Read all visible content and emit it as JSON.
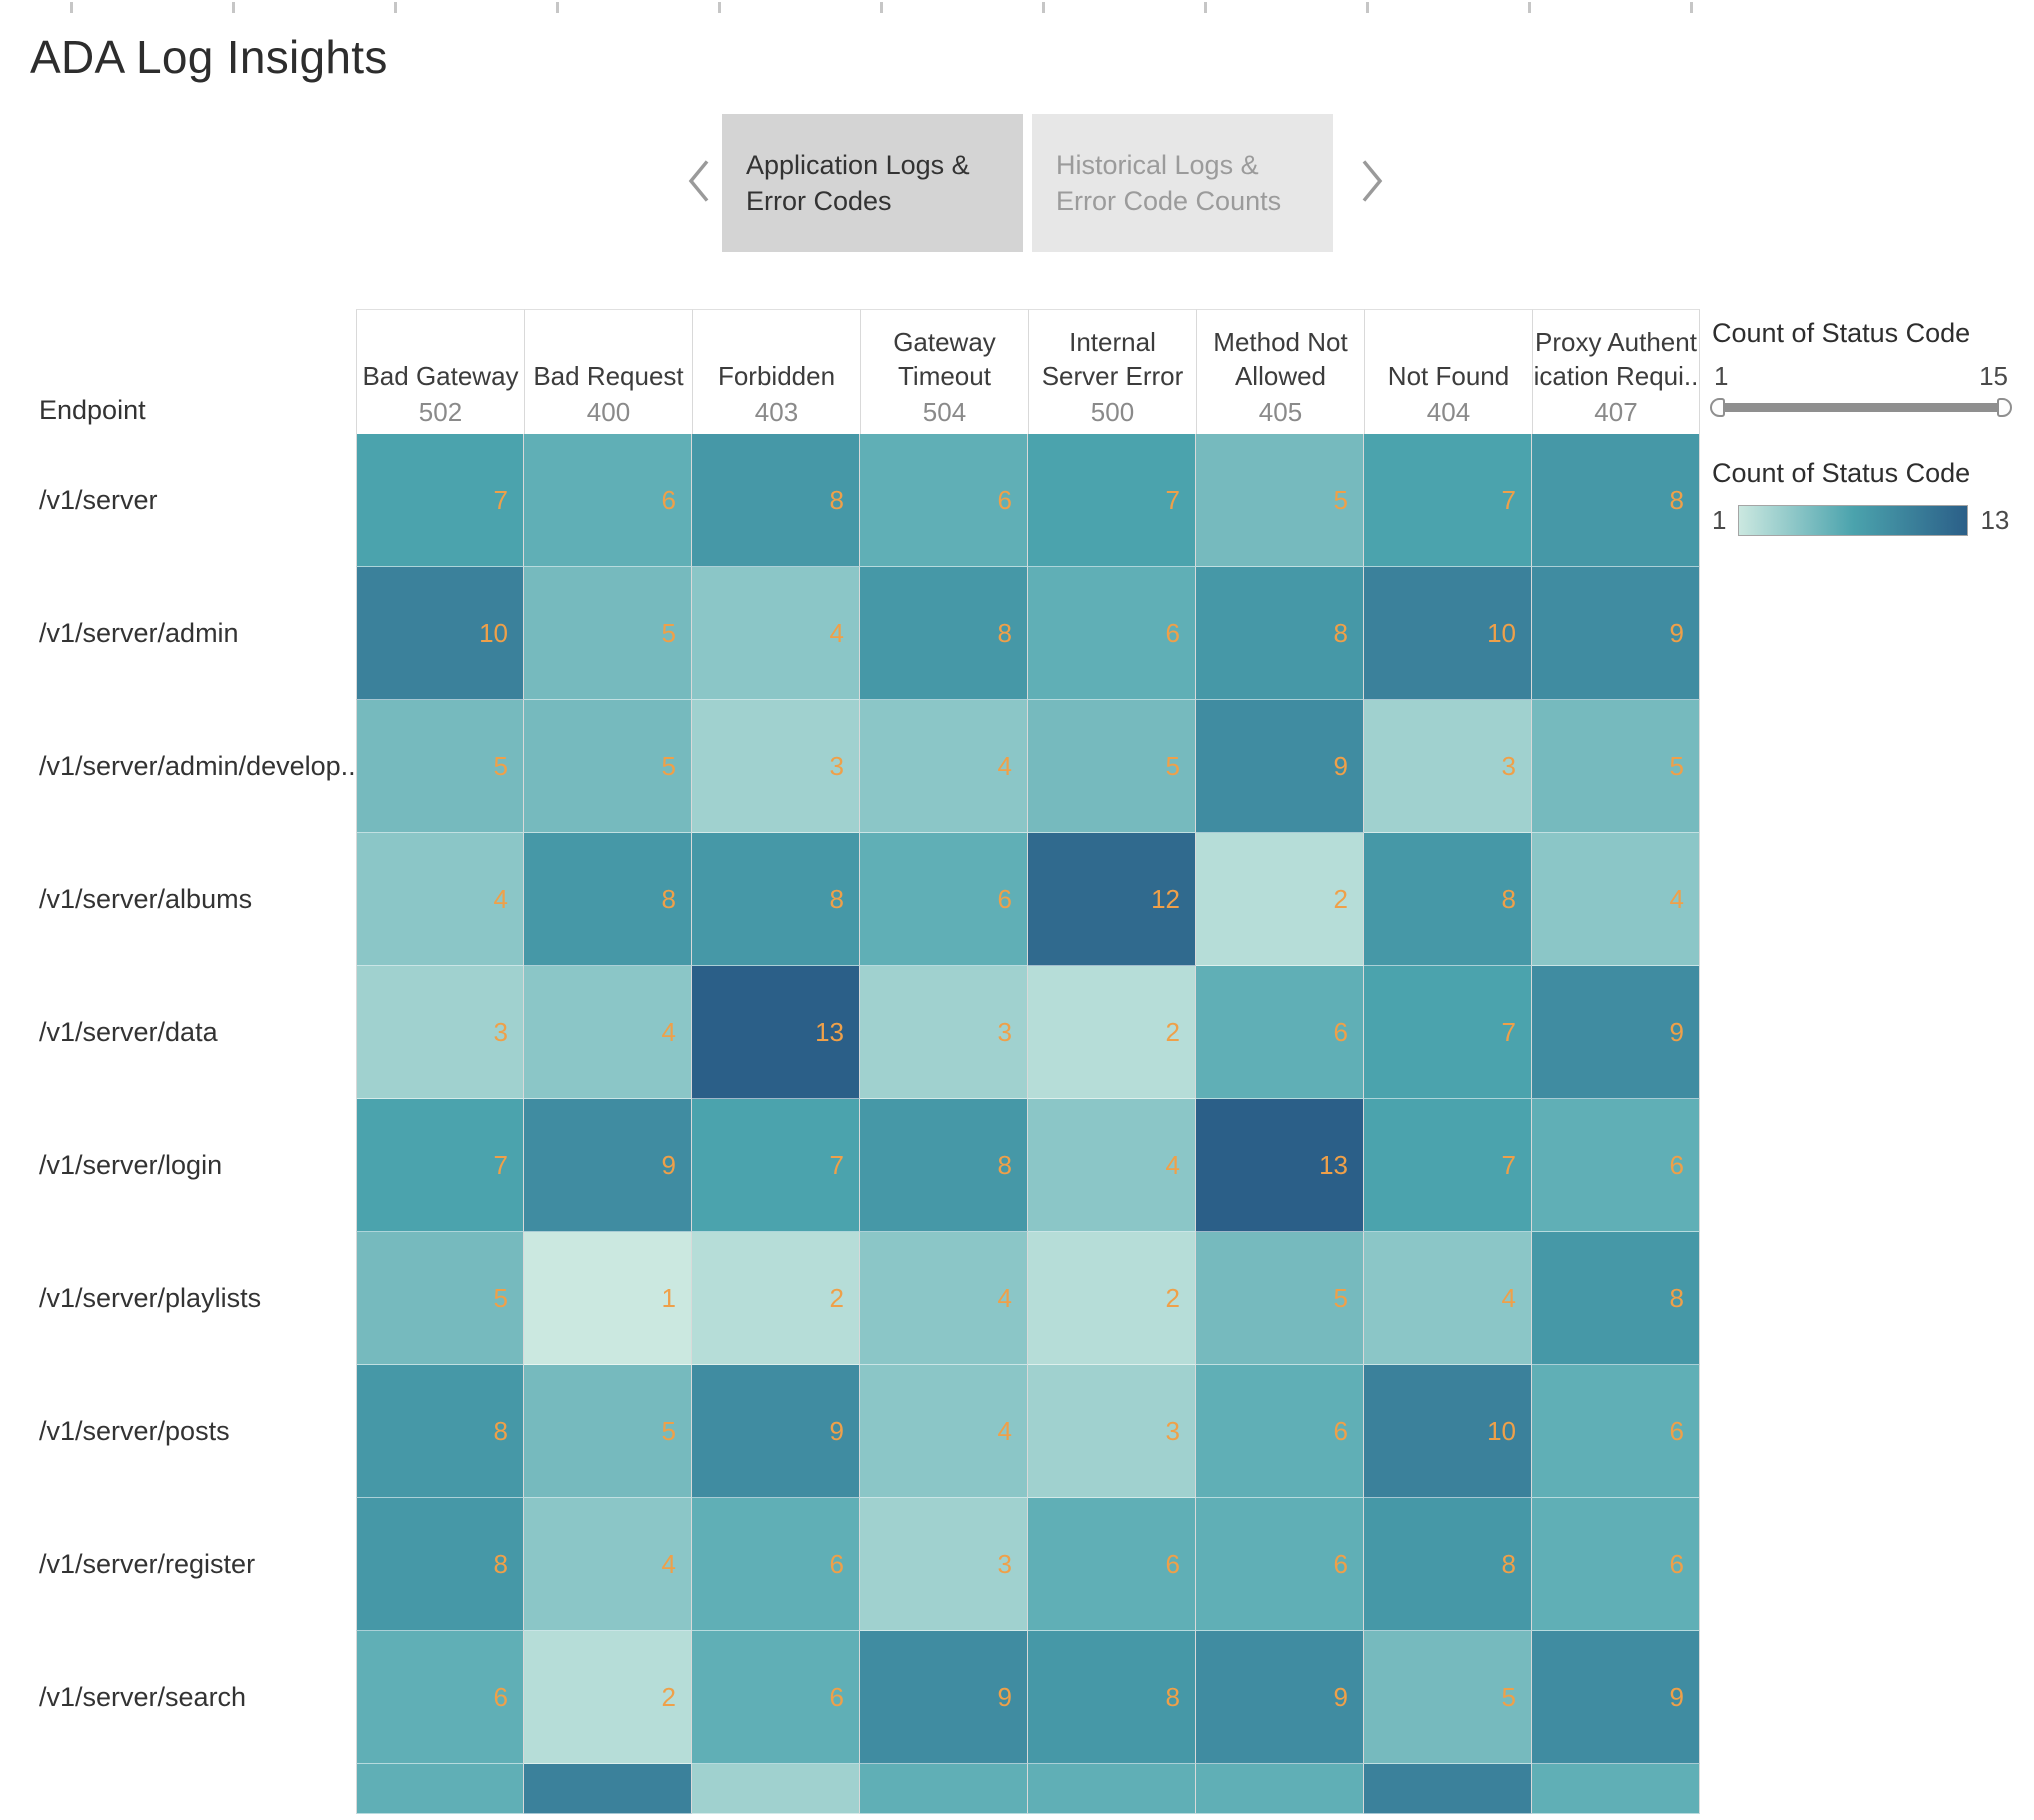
{
  "page": {
    "title": "ADA Log Insights"
  },
  "nav": {
    "tabs": [
      {
        "label": "Application Logs &\nError Codes",
        "active": true
      },
      {
        "label": "Historical Logs &\nError Code Counts",
        "active": false
      }
    ],
    "prev_icon": "chevron-left",
    "next_icon": "chevron-right"
  },
  "legend_range": {
    "title": "Count of Status Code",
    "min": "1",
    "max": "15"
  },
  "legend_color": {
    "title": "Count of Status Code",
    "min": "1",
    "max": "13"
  },
  "chart_data": {
    "type": "heatmap",
    "row_axis_label": "Endpoint",
    "columns": [
      {
        "name": "Bad Gateway",
        "code": "502"
      },
      {
        "name": "Bad Request",
        "code": "400"
      },
      {
        "name": "Forbidden",
        "code": "403"
      },
      {
        "name": "Gateway\nTimeout",
        "code": "504"
      },
      {
        "name": "Internal\nServer Error",
        "code": "500"
      },
      {
        "name": "Method Not\nAllowed",
        "code": "405"
      },
      {
        "name": "Not Found",
        "code": "404"
      },
      {
        "name": "Proxy Authent\nication Requi..",
        "code": "407"
      }
    ],
    "rows": [
      {
        "endpoint": "/v1/server",
        "values": [
          7,
          6,
          8,
          6,
          7,
          5,
          7,
          8
        ]
      },
      {
        "endpoint": "/v1/server/admin",
        "values": [
          10,
          5,
          4,
          8,
          6,
          8,
          10,
          9
        ]
      },
      {
        "endpoint": "/v1/server/admin/develop..",
        "values": [
          5,
          5,
          3,
          4,
          5,
          9,
          3,
          5
        ]
      },
      {
        "endpoint": "/v1/server/albums",
        "values": [
          4,
          8,
          8,
          6,
          12,
          2,
          8,
          4
        ]
      },
      {
        "endpoint": "/v1/server/data",
        "values": [
          3,
          4,
          13,
          3,
          2,
          6,
          7,
          9
        ]
      },
      {
        "endpoint": "/v1/server/login",
        "values": [
          7,
          9,
          7,
          8,
          4,
          13,
          7,
          6
        ]
      },
      {
        "endpoint": "/v1/server/playlists",
        "values": [
          5,
          1,
          2,
          4,
          2,
          5,
          4,
          8
        ]
      },
      {
        "endpoint": "/v1/server/posts",
        "values": [
          8,
          5,
          9,
          4,
          3,
          6,
          10,
          6
        ]
      },
      {
        "endpoint": "/v1/server/register",
        "values": [
          8,
          4,
          6,
          3,
          6,
          6,
          8,
          6
        ]
      },
      {
        "endpoint": "/v1/server/search",
        "values": [
          6,
          2,
          6,
          9,
          8,
          9,
          5,
          9
        ]
      }
    ],
    "partial_row_values": [
      6,
      10,
      3,
      6,
      6,
      6,
      10,
      6
    ],
    "value_range": [
      1,
      13
    ],
    "colors": {
      "scale_stops": [
        [
          1,
          "#cbe8e0"
        ],
        [
          7,
          "#4ba3ad"
        ],
        [
          13,
          "#2b5f88"
        ]
      ],
      "value_label": "#efa049"
    }
  }
}
